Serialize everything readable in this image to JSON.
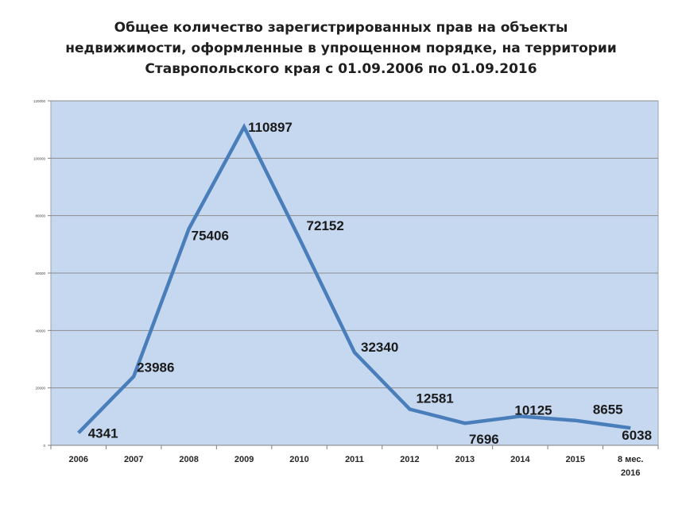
{
  "chart_data": {
    "type": "line",
    "title_lines": [
      "Общее количество зарегистрированных   прав на объекты",
      "недвижимости,  оформленные  в упрощенном  порядке, на территории",
      "Ставропольского  края  с  01.09.2006 по 01.09.2016"
    ],
    "categories": [
      "2006",
      "2007",
      "2008",
      "2009",
      "2010",
      "2011",
      "2012",
      "2013",
      "2014",
      "2015",
      "8 мес. 2016"
    ],
    "category_lines": [
      [
        "2006"
      ],
      [
        "2007"
      ],
      [
        "2008"
      ],
      [
        "2009"
      ],
      [
        "2010"
      ],
      [
        "2011"
      ],
      [
        "2012"
      ],
      [
        "2013"
      ],
      [
        "2014"
      ],
      [
        "2015"
      ],
      [
        "8 мес.",
        "2016"
      ]
    ],
    "values": [
      4341,
      23986,
      75406,
      110897,
      72152,
      32340,
      12581,
      7696,
      10125,
      8655,
      6038
    ],
    "data_labels": [
      "4341",
      "23986",
      "75406",
      "110897",
      "72152",
      "32340",
      "12581",
      "7696",
      "10125",
      "8655",
      "6038"
    ],
    "ylim": [
      0,
      120000
    ],
    "yticks": [
      0,
      20000,
      40000,
      60000,
      80000,
      100000,
      120000
    ],
    "ytick_labels": [
      "0",
      "20000",
      "40000",
      "60000",
      "80000",
      "100000",
      "120000"
    ],
    "grid": true,
    "colors": {
      "plot_background": "#c5d8f0",
      "line": "#4a7ebb",
      "grid": "#8c8c8c"
    }
  }
}
